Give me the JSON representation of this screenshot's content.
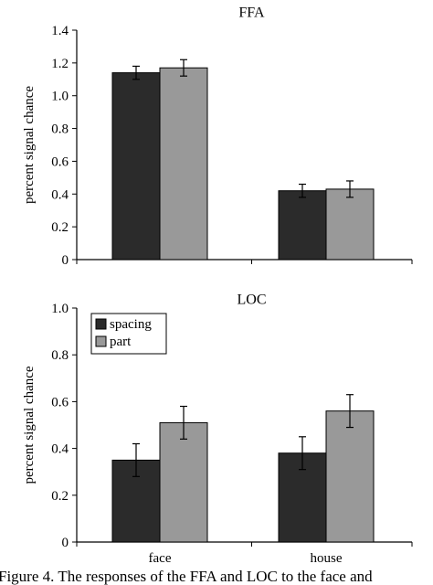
{
  "caption": "Figure 4. The responses of the FFA and LOC to the face and",
  "chart_data": [
    {
      "type": "bar",
      "title": "FFA",
      "ylabel": "percent signal chance",
      "xlabel": "",
      "categories": [
        "face",
        "house"
      ],
      "show_category_labels": false,
      "ylim": [
        0,
        1.4
      ],
      "yticks": [
        "0",
        "0.2",
        "0.4",
        "0.6",
        "0.8",
        "1.0",
        "1.2",
        "1.4"
      ],
      "grid": false,
      "legend": null,
      "series": [
        {
          "name": "spacing",
          "color": "#2b2b2b",
          "values": [
            1.14,
            0.42
          ],
          "errors": [
            0.04,
            0.04
          ]
        },
        {
          "name": "part",
          "color": "#999999",
          "values": [
            1.17,
            0.43
          ],
          "errors": [
            0.05,
            0.05
          ]
        }
      ]
    },
    {
      "type": "bar",
      "title": "LOC",
      "ylabel": "percent signal chance",
      "xlabel": "",
      "categories": [
        "face",
        "house"
      ],
      "show_category_labels": true,
      "ylim": [
        0,
        1.0
      ],
      "yticks": [
        "0",
        "0.2",
        "0.4",
        "0.6",
        "0.8",
        "1.0"
      ],
      "grid": false,
      "legend": {
        "position": "top-left",
        "entries": [
          "spacing",
          "part"
        ]
      },
      "series": [
        {
          "name": "spacing",
          "color": "#2b2b2b",
          "values": [
            0.35,
            0.38
          ],
          "errors": [
            0.07,
            0.07
          ]
        },
        {
          "name": "part",
          "color": "#999999",
          "values": [
            0.51,
            0.56
          ],
          "errors": [
            0.07,
            0.07
          ]
        }
      ]
    }
  ]
}
